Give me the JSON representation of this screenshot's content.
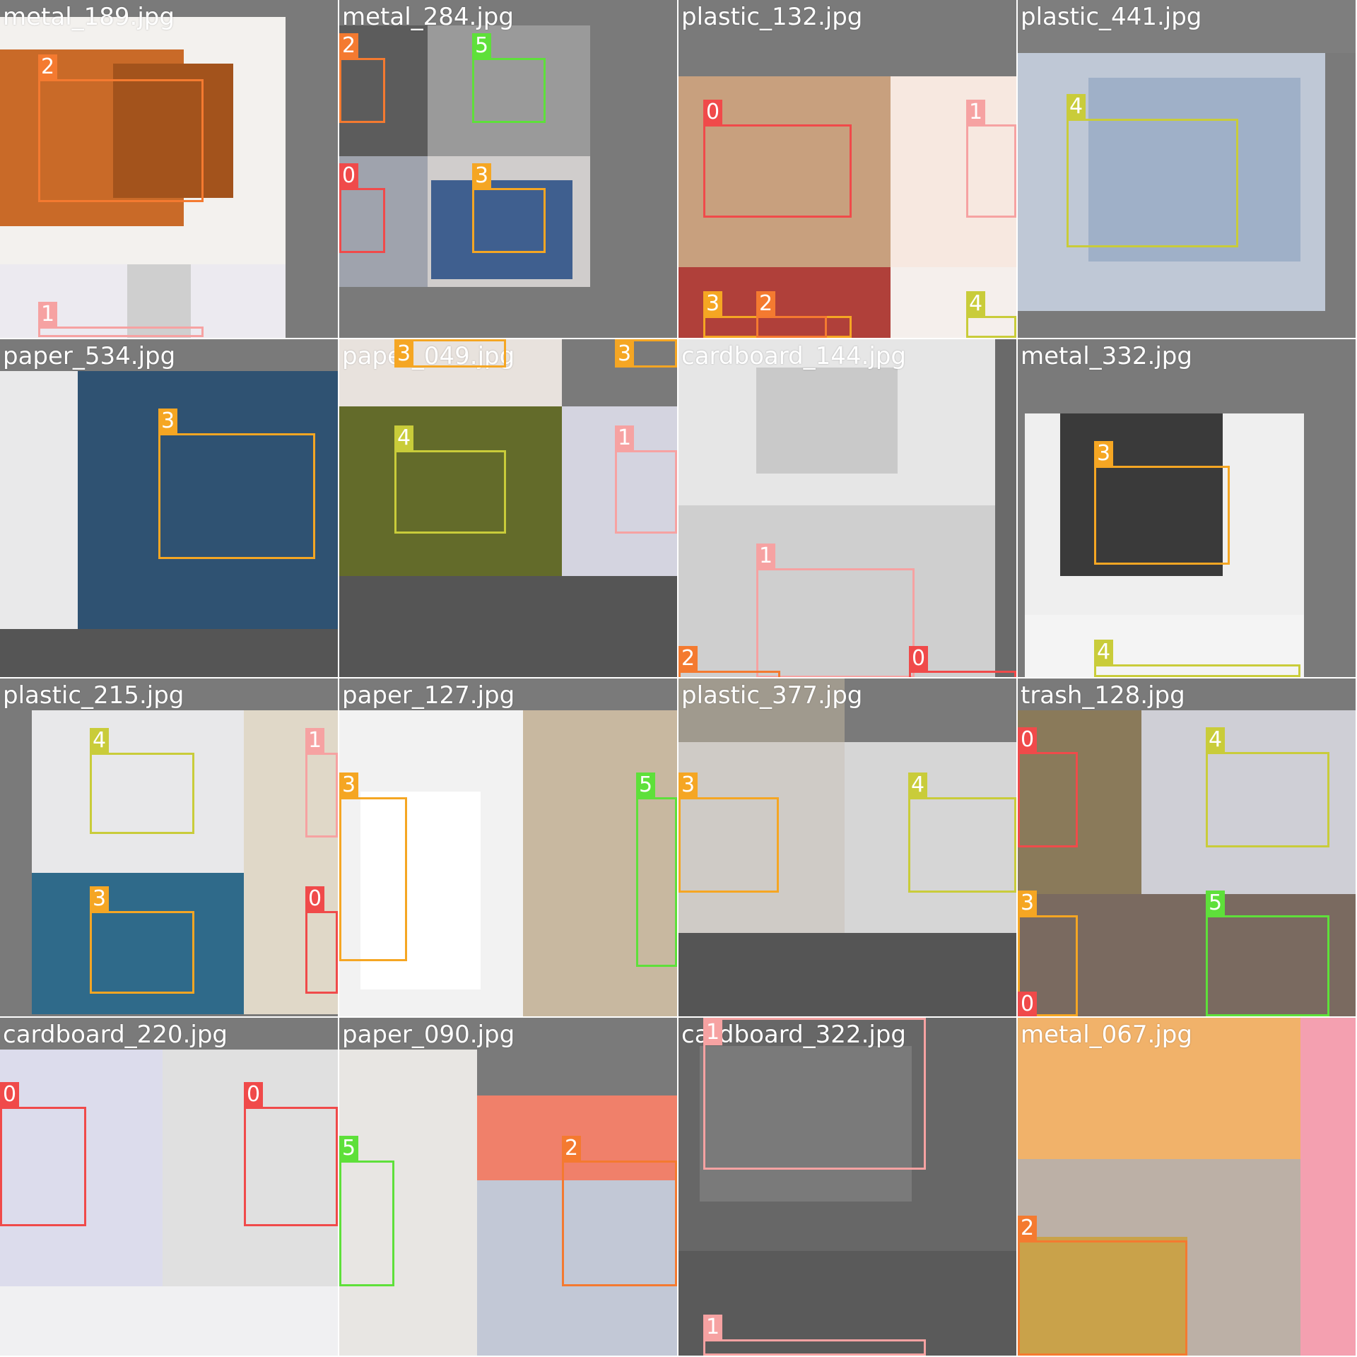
{
  "palette": {
    "0": "#f04a4a",
    "1": "#f6a2a2",
    "2": "#f47a30",
    "3": "#f5a623",
    "4": "#c9cc3a",
    "5": "#5ee03a"
  },
  "tiles": [
    {
      "caption": "metal_189.jpg"
    },
    {
      "caption": "metal_284.jpg"
    },
    {
      "caption": "plastic_132.jpg"
    },
    {
      "caption": "plastic_441.jpg"
    },
    {
      "caption": "paper_534.jpg"
    },
    {
      "caption": "paper_049.jpg"
    },
    {
      "caption": "cardboard_144.jpg"
    },
    {
      "caption": "metal_332.jpg"
    },
    {
      "caption": "plastic_215.jpg"
    },
    {
      "caption": "paper_127.jpg"
    },
    {
      "caption": "plastic_377.jpg"
    },
    {
      "caption": "trash_128.jpg"
    },
    {
      "caption": "cardboard_220.jpg"
    },
    {
      "caption": "paper_090.jpg"
    },
    {
      "caption": "cardboard_322.jpg"
    },
    {
      "caption": "metal_067.jpg"
    }
  ],
  "detections": [
    {
      "tile": 0,
      "cls": "2"
    },
    {
      "tile": 0,
      "cls": "1"
    },
    {
      "tile": 1,
      "cls": "2"
    },
    {
      "tile": 1,
      "cls": "5"
    },
    {
      "tile": 1,
      "cls": "0"
    },
    {
      "tile": 1,
      "cls": "3"
    },
    {
      "tile": 2,
      "cls": "0"
    },
    {
      "tile": 2,
      "cls": "1"
    },
    {
      "tile": 2,
      "cls": "3"
    },
    {
      "tile": 2,
      "cls": "2"
    },
    {
      "tile": 2,
      "cls": "4"
    },
    {
      "tile": 3,
      "cls": "4"
    },
    {
      "tile": 4,
      "cls": "3"
    },
    {
      "tile": 5,
      "cls": "3"
    },
    {
      "tile": 5,
      "cls": "3"
    },
    {
      "tile": 5,
      "cls": "4"
    },
    {
      "tile": 5,
      "cls": "1"
    },
    {
      "tile": 6,
      "cls": "1"
    },
    {
      "tile": 6,
      "cls": "2"
    },
    {
      "tile": 6,
      "cls": "0"
    },
    {
      "tile": 7,
      "cls": "3"
    },
    {
      "tile": 7,
      "cls": "4"
    },
    {
      "tile": 8,
      "cls": "4"
    },
    {
      "tile": 8,
      "cls": "1"
    },
    {
      "tile": 8,
      "cls": "3"
    },
    {
      "tile": 8,
      "cls": "0"
    },
    {
      "tile": 9,
      "cls": "3"
    },
    {
      "tile": 9,
      "cls": "5"
    },
    {
      "tile": 10,
      "cls": "3"
    },
    {
      "tile": 10,
      "cls": "4"
    },
    {
      "tile": 11,
      "cls": "0"
    },
    {
      "tile": 11,
      "cls": "4"
    },
    {
      "tile": 11,
      "cls": "3"
    },
    {
      "tile": 11,
      "cls": "5"
    },
    {
      "tile": 11,
      "cls": "0"
    },
    {
      "tile": 12,
      "cls": "0"
    },
    {
      "tile": 12,
      "cls": "0"
    },
    {
      "tile": 13,
      "cls": "5"
    },
    {
      "tile": 13,
      "cls": "2"
    },
    {
      "tile": 14,
      "cls": "1"
    },
    {
      "tile": 14,
      "cls": "1"
    },
    {
      "tile": 15,
      "cls": "2"
    }
  ]
}
